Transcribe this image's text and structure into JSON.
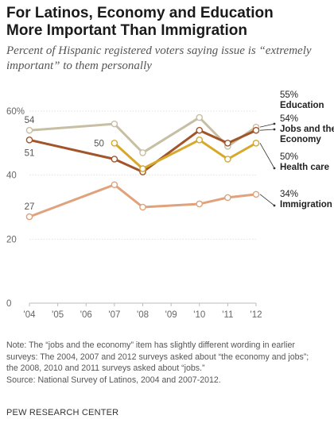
{
  "header": {
    "title_line1": "For Latinos, Economy and Education",
    "title_line2": "More Important Than Immigration",
    "subtitle_line1": "Percent of Hispanic registered voters saying issue is “extremely",
    "subtitle_line2": "important” to them personally"
  },
  "chart_data": {
    "type": "line",
    "x_ticks": [
      "'04",
      "'05",
      "'06",
      "'07",
      "'08",
      "'09",
      "'10",
      "'11",
      "'12"
    ],
    "x_years": [
      2004,
      2005,
      2006,
      2007,
      2008,
      2009,
      2010,
      2011,
      2012
    ],
    "y_ticks": [
      "0",
      "20",
      "40",
      "60%"
    ],
    "y_tick_values": [
      0,
      20,
      40,
      60
    ],
    "ylim": [
      0,
      60
    ],
    "grid": true,
    "series": [
      {
        "key": "education",
        "name": "Education",
        "color": "#c8bea3",
        "x": [
          2004,
          2007,
          2008,
          2010,
          2011,
          2012
        ],
        "values": [
          54,
          56,
          47,
          58,
          49,
          55
        ],
        "start_label": "54",
        "end_value_label": "55%",
        "end_name_label": "Education"
      },
      {
        "key": "economy",
        "name": "Jobs and the Economy",
        "color": "#a2542a",
        "x": [
          2004,
          2007,
          2008,
          2010,
          2011,
          2012
        ],
        "values": [
          51,
          45,
          41,
          54,
          50,
          54
        ],
        "start_label": "51",
        "end_value_label": "54%",
        "end_name_label": "Jobs and the",
        "end_name_label2": "Economy"
      },
      {
        "key": "health",
        "name": "Health care",
        "color": "#d7a92a",
        "x": [
          2007,
          2008,
          2010,
          2011,
          2012
        ],
        "values": [
          50,
          42,
          51,
          45,
          50
        ],
        "start_label": "50",
        "end_value_label": "50%",
        "end_name_label": "Health care"
      },
      {
        "key": "immigration",
        "name": "Immigration",
        "color": "#e0a27c",
        "x": [
          2004,
          2007,
          2008,
          2010,
          2011,
          2012
        ],
        "values": [
          27,
          37,
          30,
          31,
          33,
          34
        ],
        "start_label": "27",
        "end_value_label": "34%",
        "end_name_label": "Immigration"
      }
    ]
  },
  "notes": {
    "line1": "Note: The “jobs and the economy” item has slightly different wording in earlier",
    "line2": "surveys: The 2004, 2007 and 2012 surveys asked about “the economy and jobs”;",
    "line3": "the 2008, 2010 and 2011 surveys asked about “jobs.”",
    "line4": "Source: National Survey of Latinos, 2004 and 2007-2012."
  },
  "brand": "PEW RESEARCH CENTER"
}
